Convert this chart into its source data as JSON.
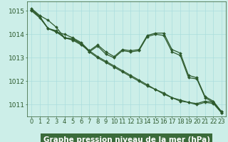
{
  "background_color": "#cceee8",
  "grid_color": "#aadddd",
  "line_color": "#2d5a2d",
  "marker": "D",
  "marker_size": 2.0,
  "linewidth": 0.9,
  "xlabel": "Graphe pression niveau de la mer (hPa)",
  "xlabel_fontsize": 7.5,
  "xlabel_color": "#ffffff",
  "xlabel_bg": "#3a6b3a",
  "tick_fontsize": 6.0,
  "ytick_fontsize": 6.5,
  "xlim": [
    -0.5,
    23.5
  ],
  "ylim": [
    1010.5,
    1015.4
  ],
  "yticks": [
    1011,
    1012,
    1013,
    1014,
    1015
  ],
  "series1": [
    1015.1,
    1014.8,
    1014.6,
    1014.3,
    1013.85,
    1013.8,
    1013.6,
    1013.25,
    1013.0,
    1012.8,
    1012.6,
    1012.4,
    1012.2,
    1012.0,
    1011.8,
    1011.65,
    1011.5,
    1011.3,
    1011.2,
    1011.1,
    1011.05,
    1011.15,
    1011.1,
    1010.7
  ],
  "series2": [
    1015.05,
    1014.75,
    1014.25,
    1014.15,
    1013.85,
    1013.75,
    1013.55,
    1013.3,
    1013.05,
    1012.85,
    1012.65,
    1012.45,
    1012.25,
    1012.05,
    1011.85,
    1011.65,
    1011.45,
    1011.3,
    1011.15,
    1011.1,
    1011.0,
    1011.1,
    1011.05,
    1010.65
  ],
  "series3": [
    1015.05,
    1014.75,
    1014.25,
    1014.1,
    1014.0,
    1013.85,
    1013.65,
    1013.3,
    1013.55,
    1013.25,
    1013.05,
    1013.35,
    1013.3,
    1013.35,
    1013.95,
    1014.05,
    1014.05,
    1013.35,
    1013.2,
    1012.25,
    1012.15,
    1011.35,
    1011.15,
    1010.7
  ],
  "series4": [
    1015.0,
    1014.7,
    1014.25,
    1014.1,
    1013.85,
    1013.8,
    1013.6,
    1013.25,
    1013.5,
    1013.15,
    1013.0,
    1013.3,
    1013.25,
    1013.3,
    1013.9,
    1014.0,
    1013.95,
    1013.25,
    1013.1,
    1012.15,
    1012.1,
    1011.3,
    1011.1,
    1010.65
  ]
}
